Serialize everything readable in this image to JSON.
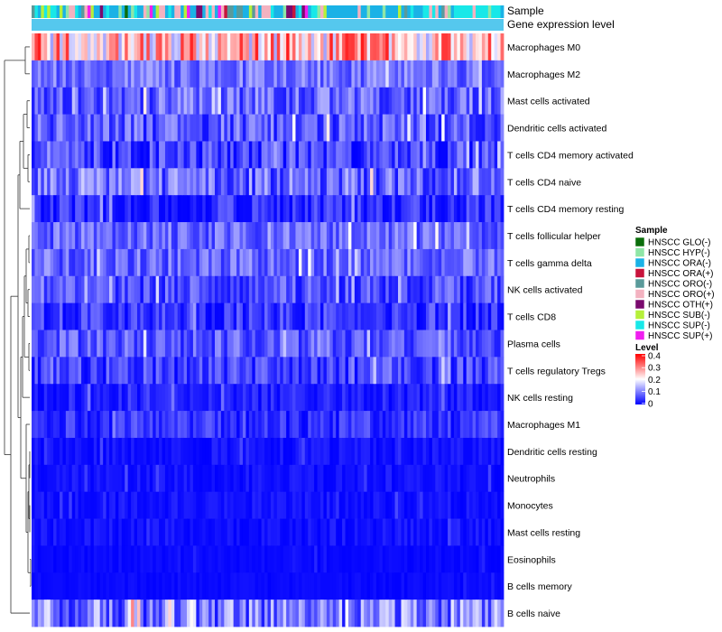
{
  "chart_data": {
    "type": "heatmap",
    "n_samples": 152,
    "rows": [
      {
        "label": "Macrophages M0",
        "mean": 0.25,
        "spread": 0.13
      },
      {
        "label": "Macrophages M2",
        "mean": 0.09,
        "spread": 0.05
      },
      {
        "label": "Mast cells activated",
        "mean": 0.08,
        "spread": 0.06
      },
      {
        "label": "Dendritic cells activated",
        "mean": 0.07,
        "spread": 0.06
      },
      {
        "label": "T cells CD4 memory activated",
        "mean": 0.05,
        "spread": 0.06
      },
      {
        "label": "T cells CD4 naive",
        "mean": 0.08,
        "spread": 0.07
      },
      {
        "label": "T cells CD4 memory resting",
        "mean": 0.03,
        "spread": 0.05
      },
      {
        "label": "T cells follicular helper",
        "mean": 0.08,
        "spread": 0.05
      },
      {
        "label": "T cells gamma delta",
        "mean": 0.08,
        "spread": 0.05
      },
      {
        "label": "NK cells activated",
        "mean": 0.06,
        "spread": 0.05
      },
      {
        "label": "T cells CD8",
        "mean": 0.04,
        "spread": 0.05
      },
      {
        "label": "Plasma cells",
        "mean": 0.07,
        "spread": 0.05
      },
      {
        "label": "T cells regulatory  Tregs",
        "mean": 0.05,
        "spread": 0.05
      },
      {
        "label": "NK cells resting",
        "mean": 0.02,
        "spread": 0.03
      },
      {
        "label": "Macrophages M1",
        "mean": 0.04,
        "spread": 0.04
      },
      {
        "label": "Dendritic cells resting",
        "mean": 0.01,
        "spread": 0.02
      },
      {
        "label": "Neutrophils",
        "mean": 0.01,
        "spread": 0.02
      },
      {
        "label": "Monocytes",
        "mean": 0.01,
        "spread": 0.02
      },
      {
        "label": "Mast cells resting",
        "mean": 0.01,
        "spread": 0.02
      },
      {
        "label": "Eosinophils",
        "mean": 0.005,
        "spread": 0.01
      },
      {
        "label": "B cells memory",
        "mean": 0.005,
        "spread": 0.01
      },
      {
        "label": "B cells naive",
        "mean": 0.1,
        "spread": 0.09
      }
    ],
    "annotations": {
      "sample_label": "Sample",
      "gene_expression_label": "Gene expression level",
      "gene_expression_color": "#55C8EE"
    },
    "color_scale": {
      "min": 0,
      "mid": 0.2,
      "max": 0.4,
      "low_color": "#0000FF",
      "mid_color": "#FFFFFF",
      "high_color": "#FF0000"
    },
    "legend_sample": {
      "title": "Sample",
      "entries": [
        {
          "label": "HNSCC GLO(-)",
          "color": "#0B6E0B"
        },
        {
          "label": "HNSCC HYP(-)",
          "color": "#8FE6A6"
        },
        {
          "label": "HNSCC ORA(-)",
          "color": "#1AB2E6"
        },
        {
          "label": "HNSCC ORA(+)",
          "color": "#C8143C"
        },
        {
          "label": "HNSCC ORO(-)",
          "color": "#5A9A9A"
        },
        {
          "label": "HNSCC ORO(+)",
          "color": "#F3B2C0"
        },
        {
          "label": "HNSCC OTH(+)",
          "color": "#7A0A6E"
        },
        {
          "label": "HNSCC SUB(-)",
          "color": "#B6F03A"
        },
        {
          "label": "HNSCC SUP(-)",
          "color": "#18E8E8"
        },
        {
          "label": "HNSCC SUP(+)",
          "color": "#F01EF0"
        }
      ]
    },
    "legend_level": {
      "title": "Level",
      "ticks": [
        "0.4",
        "0.3",
        "0.2",
        "0.1",
        "0"
      ]
    }
  }
}
